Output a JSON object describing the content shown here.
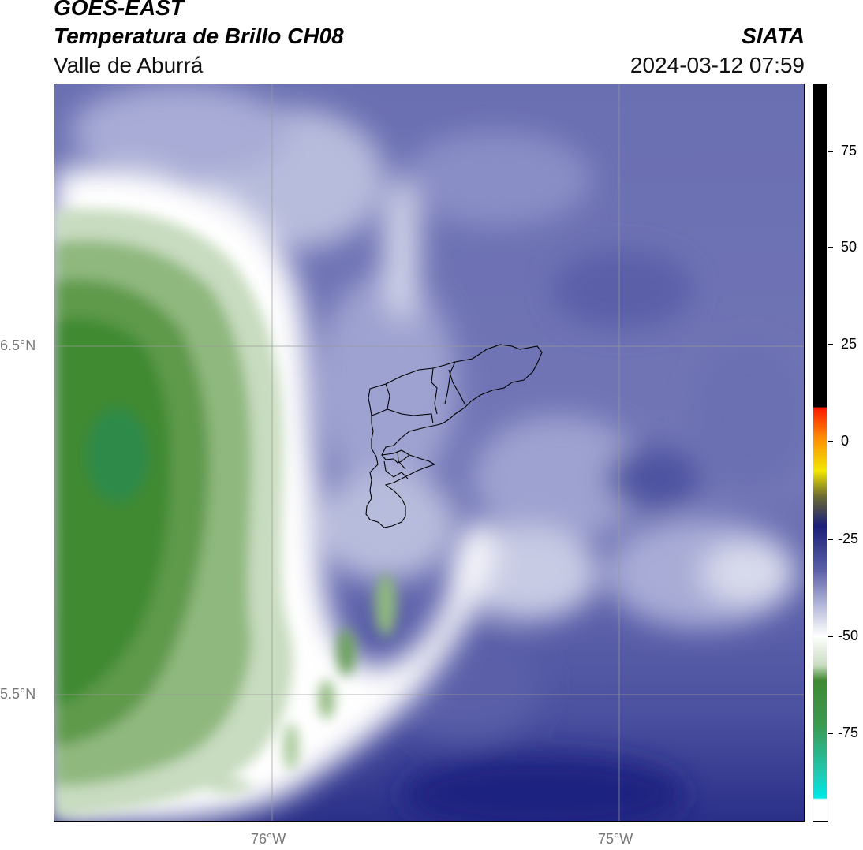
{
  "header": {
    "satellite": "GOES-EAST",
    "product": "Temperatura de Brillo CH08",
    "region": "Valle de Aburrá",
    "agency": "SIATA",
    "datetime": "2024-03-12 07:59"
  },
  "map": {
    "lat_labels": [
      "6.5°N",
      "5.5°N"
    ],
    "lon_labels": [
      "76°W",
      "75°W"
    ],
    "gridlines": true
  },
  "colorbar": {
    "ticks": [
      "75",
      "50",
      "25",
      "0",
      "-25",
      "-50",
      "-75"
    ],
    "range": [
      -95,
      92
    ],
    "colors": {
      "cyan": "#00e6e6",
      "green": "#3a8a2e",
      "white": "#ffffff",
      "blue_light": "#b8bcdc",
      "blue": "#5a5fa8",
      "navy": "#1a1f7a",
      "yellow": "#f2e600",
      "orange": "#ff8c00",
      "red": "#ff1a00",
      "black": "#000000"
    }
  }
}
